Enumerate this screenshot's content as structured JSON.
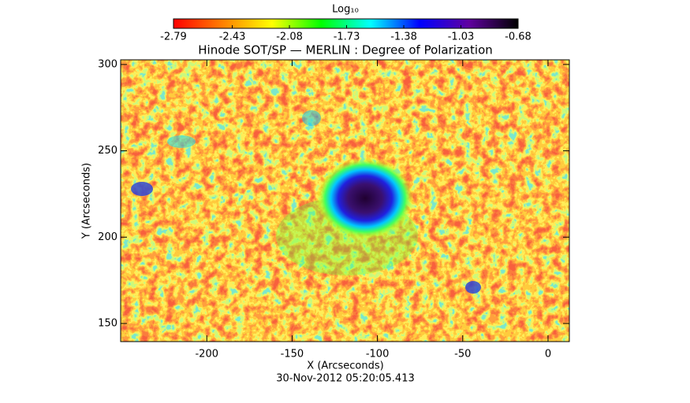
{
  "chart_data": {
    "type": "image",
    "title": "Hinode SOT/SP — MERLIN : Degree of Polarization",
    "x_label": "X (Arcseconds)",
    "y_label": "Y (Arcseconds)",
    "footer": "30-Nov-2012 05:20:05.413",
    "xlim": [
      -250.5,
      12.5
    ],
    "xticks": [
      -200,
      -150,
      -100,
      -50,
      0
    ],
    "ylim": [
      139.5,
      302.7
    ],
    "yticks": [
      150,
      200,
      250,
      300
    ],
    "colorbar": {
      "label": "Log₁₀",
      "clim": [
        -2.79,
        -0.68
      ],
      "ticks": [
        -2.79,
        -2.43,
        -2.08,
        -1.73,
        -1.38,
        -1.03,
        -0.68
      ],
      "colors": [
        "#ff0000",
        "#ff8000",
        "#ffff00",
        "#00ff00",
        "#00ffff",
        "#0000ff",
        "#6000a0",
        "#000000"
      ]
    }
  }
}
